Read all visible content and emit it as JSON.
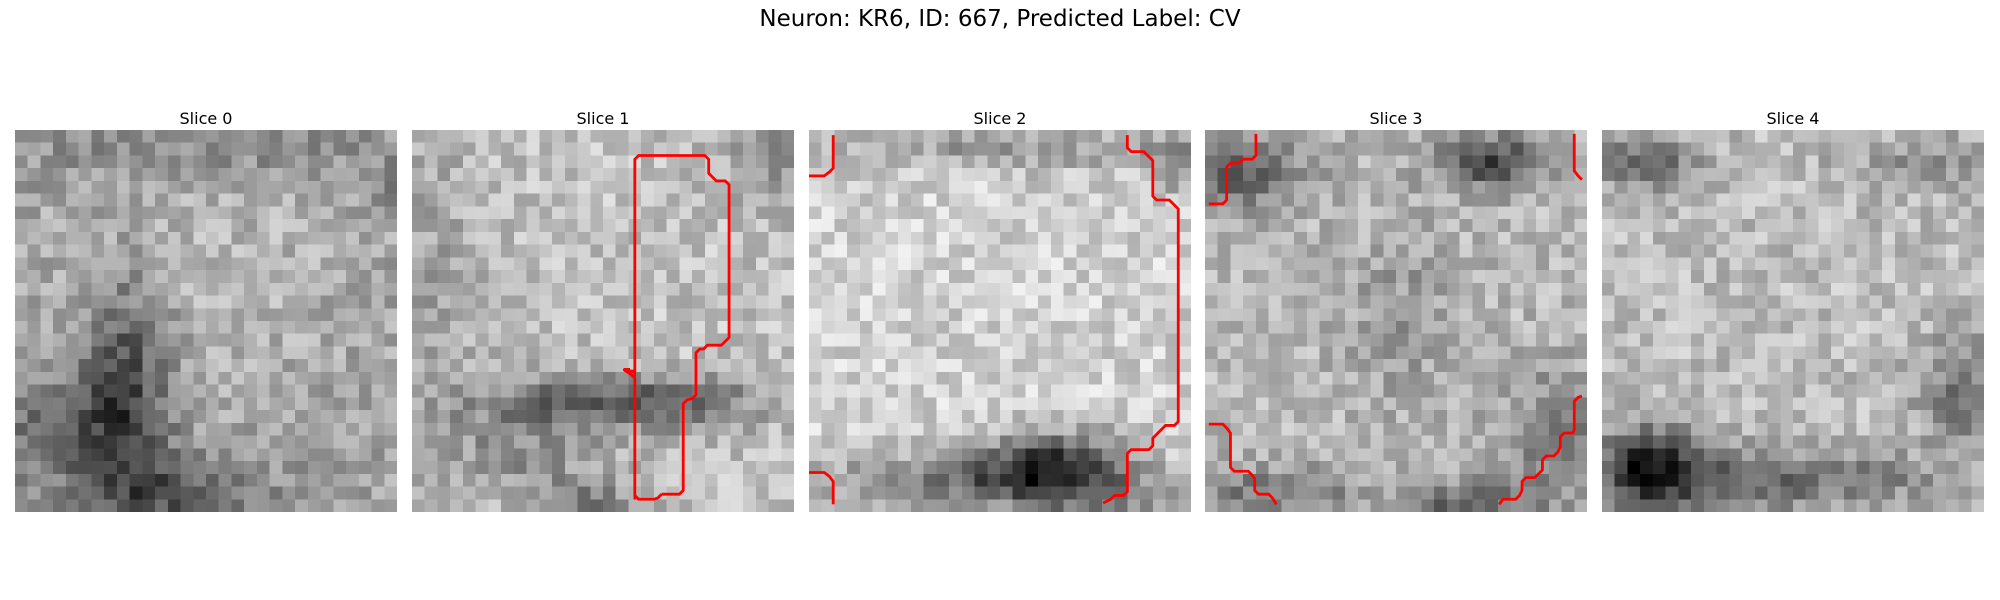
{
  "title": "Neuron: KR6, ID: 667, Predicted Label: CV",
  "colors": {
    "contour": "#ff0000",
    "background": "#ffffff"
  },
  "panels": [
    {
      "title": "Slice 0",
      "image": "grayscale-em-patch"
    },
    {
      "title": "Slice 1",
      "image": "grayscale-em-patch",
      "overlay": "red-segmentation-contour"
    },
    {
      "title": "Slice 2",
      "image": "grayscale-em-patch",
      "overlay": "red-segmentation-contour"
    },
    {
      "title": "Slice 3",
      "image": "grayscale-em-patch",
      "overlay": "red-segmentation-contour"
    },
    {
      "title": "Slice 4",
      "image": "grayscale-em-patch"
    }
  ]
}
